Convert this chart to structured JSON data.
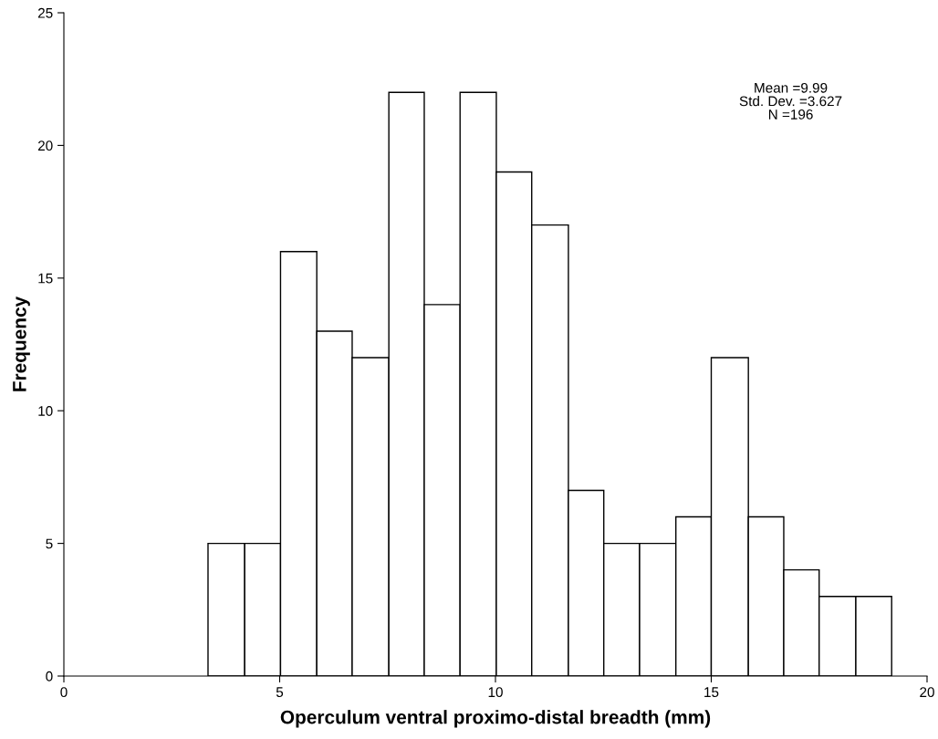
{
  "chart_data": {
    "type": "histogram",
    "xlabel": "Operculum ventral proximo-distal breadth (mm)",
    "ylabel": "Frequency",
    "bins": [
      3.34,
      4.19,
      5.02,
      5.86,
      6.68,
      7.53,
      8.35,
      9.18,
      10.02,
      10.84,
      11.69,
      12.51,
      13.34,
      14.18,
      15.0,
      15.86,
      16.68,
      17.5,
      18.35,
      19.18
    ],
    "values": [
      5,
      5,
      16,
      13,
      12,
      22,
      14,
      22,
      19,
      17,
      7,
      5,
      5,
      6,
      12,
      6,
      4,
      3,
      3
    ],
    "color": "#ffffff",
    "xlim": [
      0,
      20
    ],
    "xticks": [
      0,
      5,
      10,
      15,
      20
    ],
    "ylim": [
      0,
      25
    ],
    "yticks": [
      0,
      5,
      10,
      15,
      20,
      25
    ],
    "grid": false,
    "annotations": [
      "Mean =9.99",
      "Std. Dev. =3.627",
      "N =196"
    ]
  }
}
